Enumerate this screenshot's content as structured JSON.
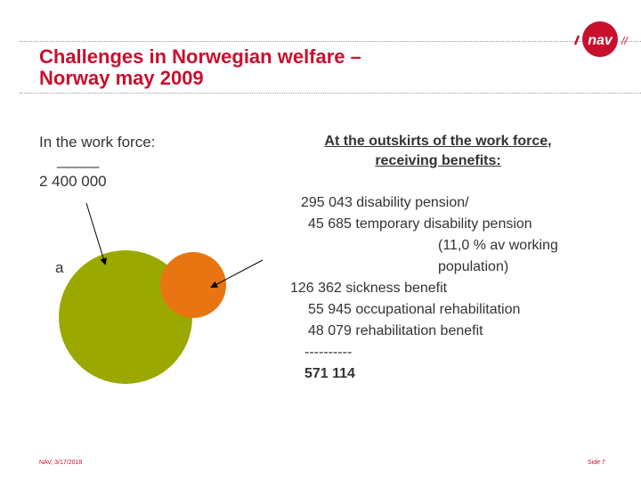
{
  "header": {
    "title_line1": "Challenges in Norwegian welfare –",
    "title_line2": "Norway may 2009",
    "logo_text": "nav",
    "logo_marks": "//"
  },
  "left": {
    "label": "In the work force:",
    "underline": "_____",
    "count": "2 400 000",
    "partial_text": "a"
  },
  "right": {
    "heading_line1": "At the outskirts of the work force,",
    "heading_line2": "receiving benefits:",
    "lines": [
      "295 043 disability pension/",
      "45 685 temporary disability pension",
      "(11,0 % av working",
      "population)",
      "126 362 sickness benefit",
      "55 945 occupational rehabilitation",
      "48 079 rehabilitation benefit",
      "----------",
      "571 114"
    ]
  },
  "footer": {
    "left": "NAV, 3/17/2018",
    "right": "Side 7"
  },
  "colors": {
    "title": "#c8102e",
    "big_circle": "#9aa800",
    "small_circle": "#e87511",
    "logo_red": "#c8102e"
  }
}
